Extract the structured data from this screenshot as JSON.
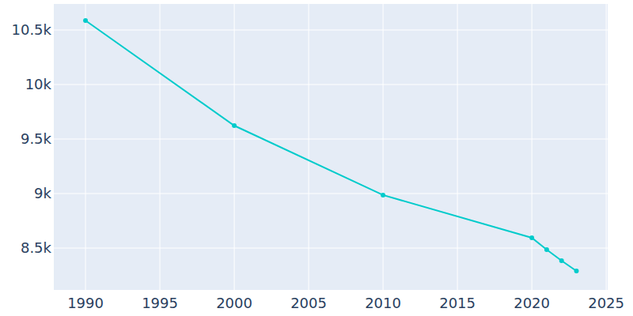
{
  "chart_data": {
    "type": "line",
    "x": [
      1990,
      2000,
      2010,
      2020,
      2021,
      2022,
      2023
    ],
    "values": [
      10587,
      9623,
      8986,
      8594,
      8486,
      8384,
      8290
    ],
    "color": "#00cbcb",
    "marker": "circle",
    "line_style": "solid",
    "xlim": [
      1987.87,
      2025.1
    ],
    "xticks": [
      1990,
      1995,
      2000,
      2005,
      2010,
      2015,
      2020,
      2025
    ],
    "ylim": [
      8116,
      10739
    ],
    "yticks": [
      {
        "value": 8500,
        "label": "8.5k"
      },
      {
        "value": 9000,
        "label": "9k"
      },
      {
        "value": 9500,
        "label": "9.5k"
      },
      {
        "value": 10000,
        "label": "10k"
      },
      {
        "value": 10500,
        "label": "10.5k"
      }
    ],
    "grid": true
  }
}
